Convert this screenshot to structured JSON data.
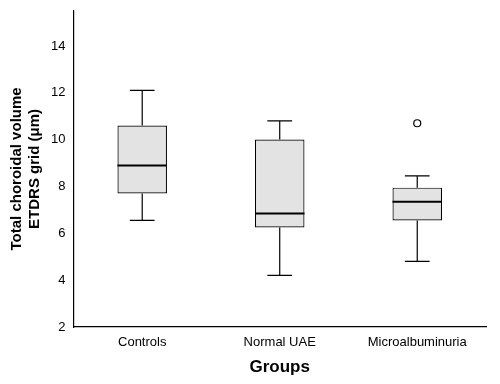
{
  "chart_data": {
    "type": "box",
    "x_label": "Groups",
    "y_label": [
      "Total choroidal volume",
      "ETDRS grid (μm)"
    ],
    "categories": [
      "Controls",
      "Normal UAE",
      "Microalbuminuria"
    ],
    "boxes": [
      {
        "min": 6.55,
        "q1": 7.7,
        "median": 8.9,
        "q3": 10.6,
        "max": 12.1,
        "outliers": []
      },
      {
        "min": 4.2,
        "q1": 6.25,
        "median": 6.85,
        "q3": 10.0,
        "max": 10.8,
        "outliers": []
      },
      {
        "min": 4.8,
        "q1": 6.55,
        "median": 7.35,
        "q3": 7.95,
        "max": 8.45,
        "outliers": [
          10.7
        ]
      }
    ],
    "color": "#e3e3e3",
    "ylim": [
      2,
      15.5
    ],
    "yticks": [
      2,
      4,
      6,
      8,
      10,
      12,
      14
    ],
    "grid": false
  }
}
